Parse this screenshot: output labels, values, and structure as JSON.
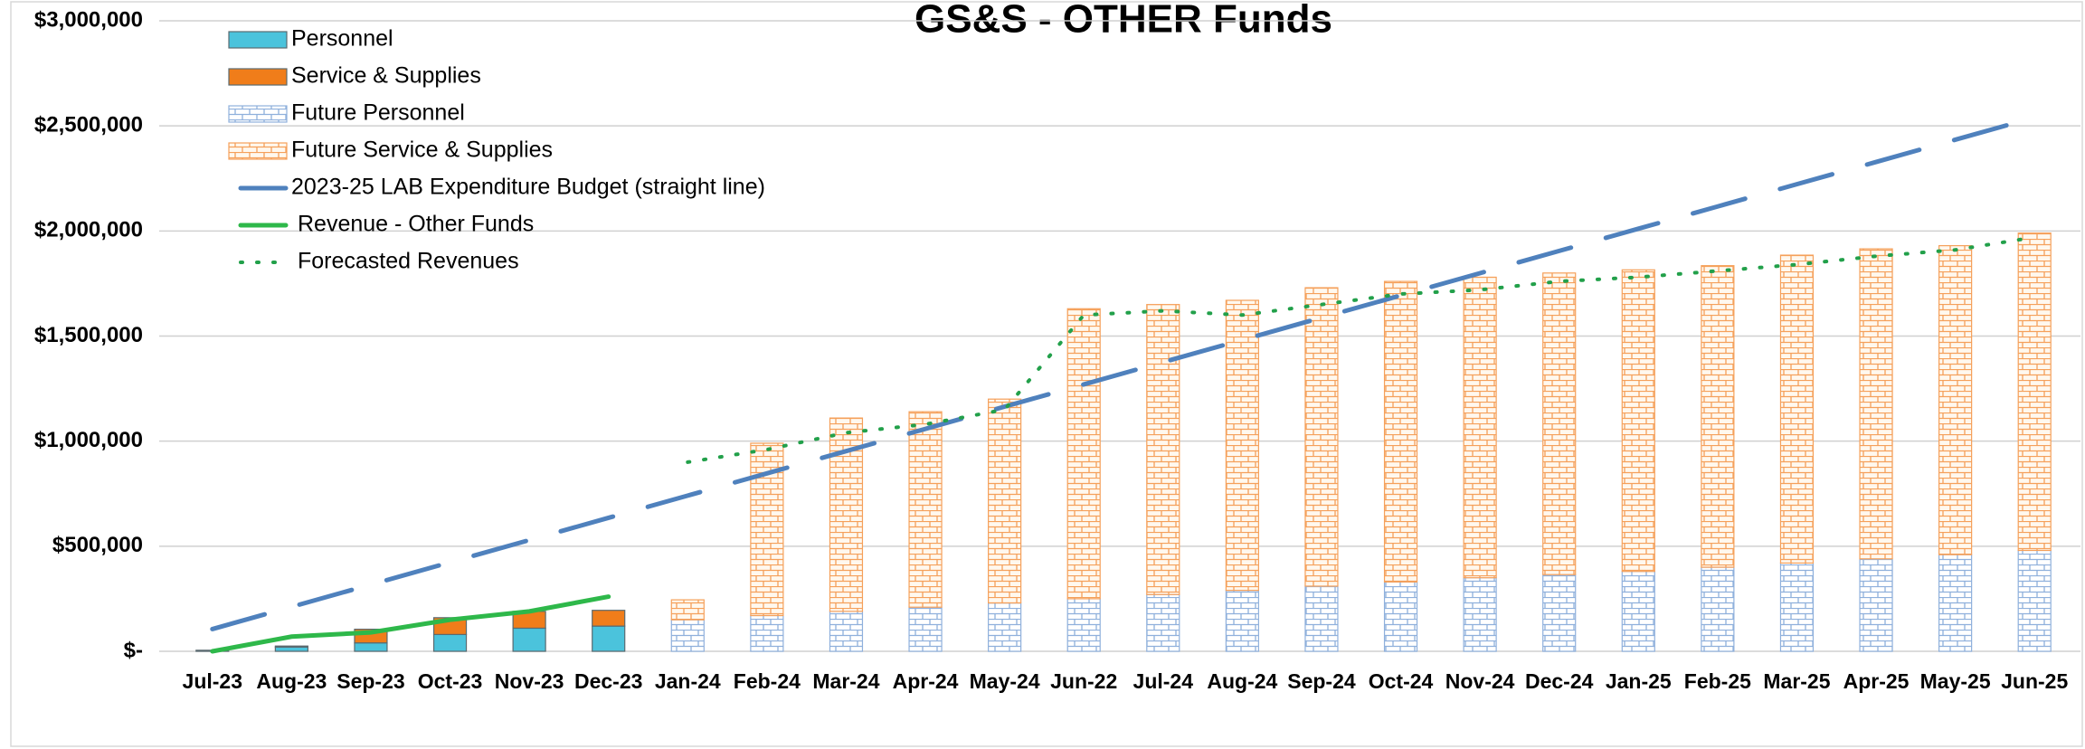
{
  "chart_data": {
    "type": "bar",
    "stacked": true,
    "title": "GS&S - OTHER Funds",
    "categories": [
      "Jul-23",
      "Aug-23",
      "Sep-23",
      "Oct-23",
      "Nov-23",
      "Dec-23",
      "Jan-24",
      "Feb-24",
      "Mar-24",
      "Apr-24",
      "May-24",
      "Jun-22",
      "Jul-24",
      "Aug-24",
      "Sep-24",
      "Oct-24",
      "Nov-24",
      "Dec-24",
      "Jan-25",
      "Feb-25",
      "Mar-25",
      "Apr-25",
      "May-25",
      "Jun-25"
    ],
    "ylim": [
      0,
      3000000
    ],
    "yticks": [
      {
        "value": 0,
        "label": "$-"
      },
      {
        "value": 500000,
        "label": "$500,000"
      },
      {
        "value": 1000000,
        "label": "$1,000,000"
      },
      {
        "value": 1500000,
        "label": "$1,500,000"
      },
      {
        "value": 2000000,
        "label": "$2,000,000"
      },
      {
        "value": 2500000,
        "label": "$2,500,000"
      },
      {
        "value": 3000000,
        "label": "$3,000,000"
      }
    ],
    "grid": true,
    "legend": "top-left",
    "series": [
      {
        "name": "Personnel",
        "kind": "bar",
        "color": "#4bc3dc",
        "fill_pattern": "solid",
        "values": [
          5000,
          20000,
          40000,
          80000,
          110000,
          120000,
          null,
          null,
          null,
          null,
          null,
          null,
          null,
          null,
          null,
          null,
          null,
          null,
          null,
          null,
          null,
          null,
          null,
          null
        ]
      },
      {
        "name": "Service & Supplies",
        "kind": "bar",
        "color": "#f07d1a",
        "fill_pattern": "solid",
        "values": [
          0,
          5000,
          65000,
          80000,
          80000,
          75000,
          null,
          null,
          null,
          null,
          null,
          null,
          null,
          null,
          null,
          null,
          null,
          null,
          null,
          null,
          null,
          null,
          null,
          null
        ]
      },
      {
        "name": "Future Personnel",
        "kind": "bar",
        "color": "#8fb0dc",
        "fill_pattern": "brick",
        "values": [
          null,
          null,
          null,
          null,
          null,
          null,
          150000,
          170000,
          190000,
          210000,
          230000,
          250000,
          270000,
          290000,
          310000,
          330000,
          350000,
          365000,
          380000,
          400000,
          420000,
          440000,
          460000,
          480000
        ]
      },
      {
        "name": "Future Service & Supplies",
        "kind": "bar",
        "color": "#f5a05a",
        "fill_pattern": "brick",
        "values": [
          null,
          null,
          null,
          null,
          null,
          null,
          95000,
          820000,
          920000,
          930000,
          970000,
          1380000,
          1380000,
          1380000,
          1420000,
          1430000,
          1430000,
          1435000,
          1435000,
          1435000,
          1465000,
          1475000,
          1470000,
          1510000
        ]
      },
      {
        "name": "2023-25 LAB Expenditure Budget (straight line)",
        "kind": "line",
        "color": "#4f81bd",
        "line_style": "dashed",
        "values": [
          105833,
          211667,
          317500,
          423333,
          529167,
          635000,
          740833,
          846667,
          952500,
          1058333,
          1164167,
          1270000,
          1375833,
          1481667,
          1587500,
          1693333,
          1799167,
          1905000,
          2010833,
          2116667,
          2222500,
          2328333,
          2434167,
          2540000
        ]
      },
      {
        "name": "Revenue - Other Funds",
        "kind": "line",
        "color": "#2eb84a",
        "line_style": "solid",
        "values": [
          0,
          70000,
          90000,
          150000,
          190000,
          260000,
          null,
          null,
          null,
          null,
          null,
          null,
          null,
          null,
          null,
          null,
          null,
          null,
          null,
          null,
          null,
          null,
          null,
          null
        ]
      },
      {
        "name": "Forecasted Revenues",
        "kind": "line",
        "color": "#22a04a",
        "line_style": "dotted",
        "values": [
          null,
          null,
          null,
          null,
          null,
          null,
          900000,
          960000,
          1040000,
          1080000,
          1150000,
          1600000,
          1620000,
          1600000,
          1650000,
          1700000,
          1720000,
          1760000,
          1780000,
          1810000,
          1840000,
          1880000,
          1910000,
          1970000
        ]
      }
    ]
  }
}
